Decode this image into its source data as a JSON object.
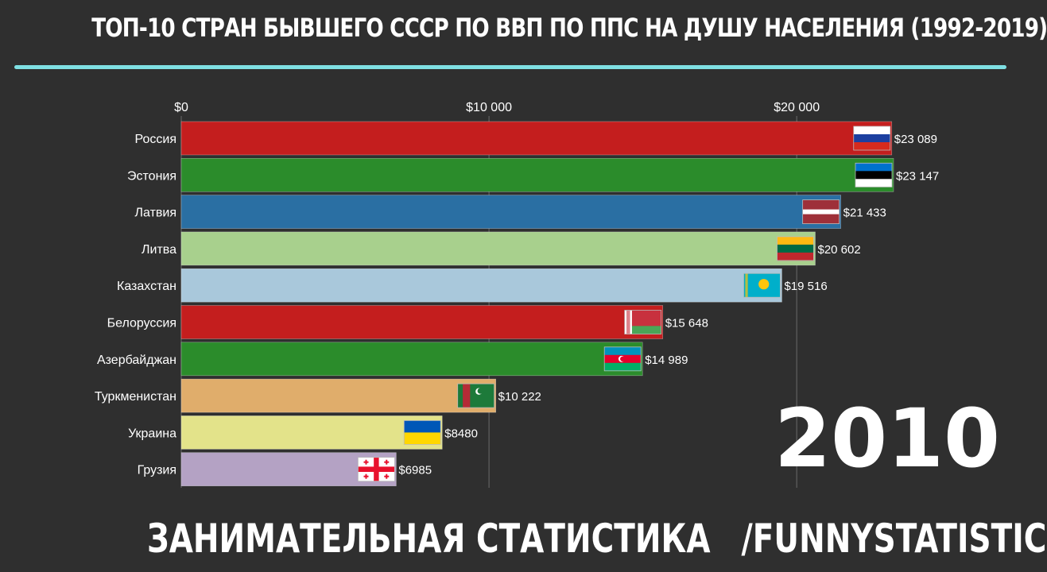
{
  "title": "ТОП-10 СТРАН БЫВШЕГО СССР ПО ВВП ПО ППС НА ДУШУ НАСЕЛЕНИЯ  (1992-2019)",
  "year": "2010",
  "footer": {
    "brand": "ЗАНИМАТЕЛЬНАЯ СТАТИСТИКА",
    "handle": "/FUNNYSTATISTIC"
  },
  "chart_data": {
    "type": "bar",
    "orientation": "horizontal",
    "xlim": [
      0,
      23147
    ],
    "ticks": [
      0,
      10000,
      20000
    ],
    "tick_labels": [
      "$0",
      "$10 000",
      "$20 000"
    ],
    "grid": true,
    "categories": [
      "Россия",
      "Эстония",
      "Латвия",
      "Литва",
      "Казахстан",
      "Белоруссия",
      "Азербайджан",
      "Туркменистан",
      "Украина",
      "Грузия"
    ],
    "values": [
      23089,
      23147,
      21433,
      20602,
      19516,
      15648,
      14989,
      10222,
      8480,
      6985
    ],
    "value_labels": [
      "$23 089",
      "$23 147",
      "$21 433",
      "$20 602",
      "$19 516",
      "$15 648",
      "$14 989",
      "$10 222",
      "$8480",
      "$6985"
    ],
    "colors": [
      "#c41e1e",
      "#2b8c2b",
      "#2a6fa3",
      "#a8d08d",
      "#a9c8db",
      "#c41e1e",
      "#2b8c2b",
      "#e0ad6b",
      "#e3e38a",
      "#b4a2c4"
    ],
    "flags": [
      "russia-flag",
      "estonia-flag",
      "latvia-flag",
      "lithuania-flag",
      "kazakhstan-flag",
      "belarus-flag",
      "azerbaijan-flag",
      "turkmenistan-flag",
      "ukraine-flag",
      "georgia-flag"
    ]
  }
}
